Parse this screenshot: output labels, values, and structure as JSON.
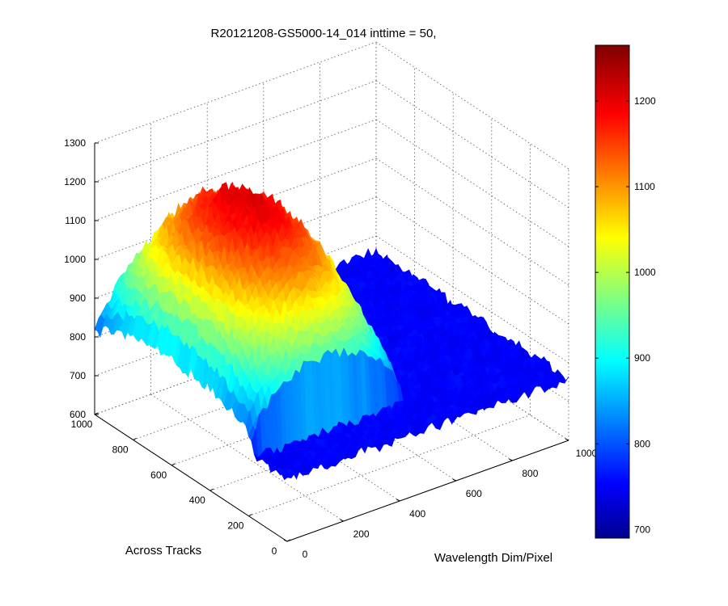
{
  "chart_data": {
    "type": "surface",
    "title": "R20121208-GS5000-14_014 inttime = 50,",
    "x_axis": {
      "label": "Wavelength Dim/Pixel",
      "range": [
        0,
        1000
      ],
      "ticks": [
        0,
        200,
        400,
        600,
        800,
        1000
      ],
      "tick_labels": [
        "0",
        "200",
        "400",
        "600",
        "800",
        "1000"
      ]
    },
    "y_axis": {
      "label": "Across Tracks",
      "range": [
        0,
        1000
      ],
      "ticks": [
        0,
        200,
        400,
        600,
        800,
        1000
      ],
      "tick_labels": [
        "0",
        "200",
        "400",
        "600",
        "800",
        "1000"
      ]
    },
    "z_axis": {
      "label": "",
      "range": [
        600,
        1300
      ],
      "ticks": [
        600,
        700,
        800,
        900,
        1000,
        1100,
        1200,
        1300
      ],
      "tick_labels": [
        "600",
        "700",
        "800",
        "900",
        "1000",
        "1100",
        "1200",
        "1300"
      ]
    },
    "grid": true,
    "colormap": "jet",
    "colorbar": {
      "range": [
        690,
        1265
      ],
      "ticks": [
        700,
        800,
        900,
        1000,
        1100,
        1200
      ],
      "tick_labels": [
        "700",
        "800",
        "900",
        "1000",
        "1100",
        "1200"
      ]
    },
    "surface_model": {
      "baseline": 760,
      "noise": 15,
      "peak_value": 1210,
      "peak_x_range": [
        0,
        530
      ],
      "peak_y_range": [
        180,
        1000
      ],
      "x_center": 265,
      "y_center": 600
    }
  }
}
